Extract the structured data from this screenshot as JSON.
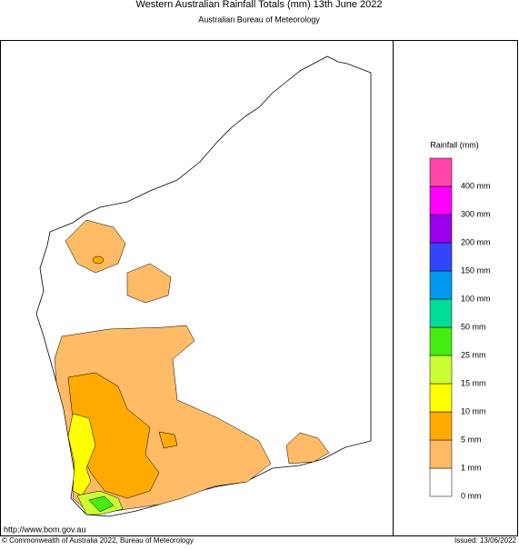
{
  "header": {
    "title": "Western Australian Rainfall Totals (mm) 13th June 2022",
    "subtitle": "Australian Bureau of Meteorology"
  },
  "legend": {
    "title": "Rainfall (mm)",
    "items": [
      {
        "label": "0 mm",
        "color": "#ffffff"
      },
      {
        "label": "1 mm",
        "color": "#ffbb66"
      },
      {
        "label": "5 mm",
        "color": "#ffaa00"
      },
      {
        "label": "10 mm",
        "color": "#ffff00"
      },
      {
        "label": "15 mm",
        "color": "#ccff33"
      },
      {
        "label": "25 mm",
        "color": "#44ee11"
      },
      {
        "label": "50 mm",
        "color": "#00dd99"
      },
      {
        "label": "100 mm",
        "color": "#0099ee"
      },
      {
        "label": "150 mm",
        "color": "#3344ff"
      },
      {
        "label": "200 mm",
        "color": "#9900ee"
      },
      {
        "label": "300 mm",
        "color": "#ff00ff"
      },
      {
        "label": "400 mm",
        "color": "#ff44aa"
      }
    ]
  },
  "footer": {
    "url": "http://www.bom.gov.au",
    "copyright": "© Commonwealth of Australia 2022, Bureau of Meteorology",
    "issued": "Issued: 13/06/2022"
  }
}
